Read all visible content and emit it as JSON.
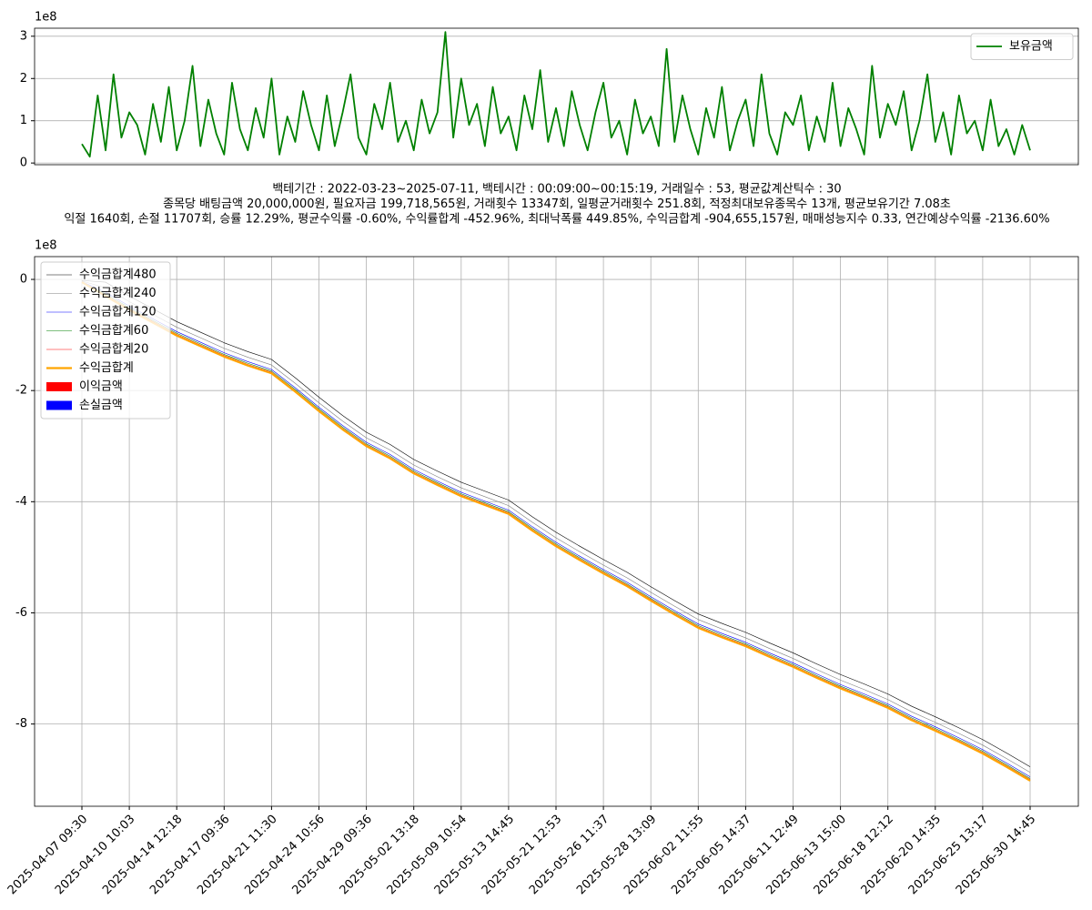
{
  "chart_data": [
    {
      "type": "line",
      "y_offset_label": "1e8",
      "ylim": [
        -0.04,
        3.19
      ],
      "yticks": [
        0,
        1,
        2,
        3
      ],
      "grid": "y",
      "legend": "upper right",
      "series": [
        {
          "name": "보유금액",
          "color": "#008000",
          "values": [
            0.45,
            0.15,
            1.6,
            0.3,
            2.1,
            0.6,
            1.2,
            0.9,
            0.2,
            1.4,
            0.5,
            1.8,
            0.3,
            1.0,
            2.3,
            0.4,
            1.5,
            0.7,
            0.2,
            1.9,
            0.8,
            0.3,
            1.3,
            0.6,
            2.0,
            0.2,
            1.1,
            0.5,
            1.7,
            0.9,
            0.3,
            1.6,
            0.4,
            1.2,
            2.1,
            0.6,
            0.2,
            1.4,
            0.8,
            1.9,
            0.5,
            1.0,
            0.3,
            1.5,
            0.7,
            1.2,
            3.1,
            0.6,
            2.0,
            0.9,
            1.4,
            0.4,
            1.8,
            0.7,
            1.1,
            0.3,
            1.6,
            0.8,
            2.2,
            0.5,
            1.3,
            0.4,
            1.7,
            0.9,
            0.3,
            1.2,
            1.9,
            0.6,
            1.0,
            0.2,
            1.5,
            0.7,
            1.1,
            0.4,
            2.7,
            0.5,
            1.6,
            0.8,
            0.2,
            1.3,
            0.6,
            1.8,
            0.3,
            1.0,
            1.5,
            0.4,
            2.1,
            0.7,
            0.2,
            1.2,
            0.9,
            1.6,
            0.3,
            1.1,
            0.5,
            1.9,
            0.4,
            1.3,
            0.8,
            0.2,
            2.3,
            0.6,
            1.4,
            0.9,
            1.7,
            0.3,
            1.0,
            2.1,
            0.5,
            1.2,
            0.2,
            1.6,
            0.7,
            1.0,
            0.3,
            1.5,
            0.4,
            0.8,
            0.2,
            0.9,
            0.3
          ]
        }
      ]
    },
    {
      "type": "line",
      "title": [
        "백테기간 : 2022-03-23~2025-07-11, 백테시간 : 00:09:00~00:15:19, 거래일수 : 53, 평균값계산틱수 : 30",
        "종목당 배팅금액 20,000,000원, 필요자금 199,718,565원, 거래횟수 13347회, 일평균거래횟수 251.8회, 적정최대보유종목수 13개, 평균보유기간 7.08초",
        "익절 1640회, 손절 11707회, 승률 12.29%, 평균수익률 -0.60%, 수익률합계 -452.96%, 최대낙폭률 449.85%, 수익금합계 -904,655,157원, 매매성능지수 0.33, 연간예상수익률 -2136.60%"
      ],
      "y_offset_label": "1e8",
      "ylim": [
        -9.48,
        0.41
      ],
      "yticks": [
        0,
        -2,
        -4,
        -6,
        -8
      ],
      "grid": "both",
      "legend": "upper left",
      "categories": [
        "2025-04-07 09:30",
        null,
        "2025-04-10 10:03",
        null,
        "2025-04-14 12:18",
        null,
        "2025-04-17 09:36",
        null,
        "2025-04-21 11:30",
        null,
        "2025-04-24 10:56",
        null,
        "2025-04-29 09:36",
        null,
        "2025-05-02 13:18",
        null,
        "2025-05-09 10:54",
        null,
        "2025-05-13 14:45",
        null,
        "2025-05-21 12:53",
        null,
        "2025-05-26 11:37",
        null,
        "2025-05-28 13:09",
        null,
        "2025-06-02 11:55",
        null,
        "2025-06-05 14:37",
        null,
        "2025-06-11 12:49",
        null,
        "2025-06-13 15:00",
        null,
        "2025-06-18 12:12",
        null,
        "2025-06-20 14:35",
        null,
        "2025-06-25 13:17",
        null,
        "2025-06-30 14:45"
      ],
      "series": [
        {
          "name": "수익금합계480",
          "color": "#000000",
          "values": [
            -0.02,
            -0.05,
            -0.3,
            -0.53,
            -0.76,
            -0.95,
            -1.14,
            -1.3,
            -1.44,
            -1.77,
            -2.12,
            -2.45,
            -2.75,
            -2.97,
            -3.24,
            -3.45,
            -3.65,
            -3.81,
            -3.97,
            -4.27,
            -4.55,
            -4.8,
            -5.04,
            -5.27,
            -5.53,
            -5.78,
            -6.02,
            -6.19,
            -6.35,
            -6.54,
            -6.72,
            -6.92,
            -7.11,
            -7.28,
            -7.46,
            -7.68,
            -7.87,
            -8.07,
            -8.28,
            -8.52,
            -8.77
          ]
        },
        {
          "name": "수익금합계240",
          "color": "#808080",
          "values": [
            -0.03,
            -0.15,
            -0.4,
            -0.63,
            -0.86,
            -1.05,
            -1.24,
            -1.4,
            -1.54,
            -1.87,
            -2.22,
            -2.55,
            -2.85,
            -3.07,
            -3.34,
            -3.55,
            -3.75,
            -3.91,
            -4.07,
            -4.37,
            -4.65,
            -4.9,
            -5.14,
            -5.37,
            -5.63,
            -5.88,
            -6.12,
            -6.29,
            -6.45,
            -6.64,
            -6.82,
            -7.02,
            -7.21,
            -7.38,
            -7.56,
            -7.78,
            -7.97,
            -8.17,
            -8.38,
            -8.62,
            -8.87
          ]
        },
        {
          "name": "수익금합계120",
          "color": "#0000ff",
          "values": [
            -0.04,
            -0.23,
            -0.48,
            -0.71,
            -0.94,
            -1.13,
            -1.32,
            -1.48,
            -1.62,
            -1.95,
            -2.3,
            -2.63,
            -2.93,
            -3.15,
            -3.42,
            -3.63,
            -3.83,
            -3.99,
            -4.15,
            -4.45,
            -4.73,
            -4.98,
            -5.22,
            -5.45,
            -5.71,
            -5.96,
            -6.2,
            -6.37,
            -6.53,
            -6.72,
            -6.9,
            -7.1,
            -7.29,
            -7.46,
            -7.64,
            -7.86,
            -8.05,
            -8.25,
            -8.46,
            -8.7,
            -8.95
          ]
        },
        {
          "name": "수익금합계60",
          "color": "#008000",
          "values": [
            -0.05,
            -0.26,
            -0.51,
            -0.74,
            -0.97,
            -1.16,
            -1.35,
            -1.51,
            -1.65,
            -1.98,
            -2.33,
            -2.66,
            -2.96,
            -3.18,
            -3.45,
            -3.66,
            -3.86,
            -4.02,
            -4.18,
            -4.48,
            -4.76,
            -5.01,
            -5.25,
            -5.48,
            -5.74,
            -5.99,
            -6.23,
            -6.4,
            -6.56,
            -6.75,
            -6.93,
            -7.13,
            -7.32,
            -7.49,
            -7.67,
            -7.89,
            -8.08,
            -8.28,
            -8.49,
            -8.73,
            -8.98
          ]
        },
        {
          "name": "수익금합계20",
          "color": "#ff0000",
          "values": [
            -0.05,
            -0.28,
            -0.53,
            -0.76,
            -0.99,
            -1.18,
            -1.37,
            -1.53,
            -1.67,
            -2.0,
            -2.35,
            -2.68,
            -2.98,
            -3.2,
            -3.47,
            -3.68,
            -3.88,
            -4.04,
            -4.2,
            -4.5,
            -4.78,
            -5.03,
            -5.27,
            -5.5,
            -5.76,
            -6.01,
            -6.25,
            -6.42,
            -6.58,
            -6.77,
            -6.95,
            -7.15,
            -7.34,
            -7.51,
            -7.69,
            -7.91,
            -8.1,
            -8.3,
            -8.51,
            -8.75,
            -9.0
          ]
        },
        {
          "name": "수익금합계",
          "color": "#ffa500",
          "values": [
            -0.05,
            -0.3,
            -0.55,
            -0.78,
            -1.01,
            -1.2,
            -1.39,
            -1.55,
            -1.69,
            -2.02,
            -2.37,
            -2.7,
            -3.0,
            -3.22,
            -3.49,
            -3.7,
            -3.9,
            -4.06,
            -4.22,
            -4.52,
            -4.8,
            -5.05,
            -5.29,
            -5.52,
            -5.78,
            -6.03,
            -6.27,
            -6.44,
            -6.6,
            -6.79,
            -6.97,
            -7.17,
            -7.36,
            -7.53,
            -7.71,
            -7.93,
            -8.12,
            -8.32,
            -8.53,
            -8.77,
            -9.02
          ]
        },
        {
          "name": "이익금액",
          "color": "#ff0000",
          "type": "bar",
          "values": [
            0,
            0,
            0,
            0,
            0,
            0,
            0,
            0,
            0,
            0,
            0,
            0,
            0,
            0,
            0,
            0,
            0,
            0,
            0,
            0,
            0,
            0,
            0,
            0,
            0,
            0,
            0,
            0,
            0,
            0,
            0,
            0,
            0,
            0,
            0,
            0,
            0,
            0,
            0,
            0,
            0
          ]
        },
        {
          "name": "손실금액",
          "color": "#0000ff",
          "type": "bar",
          "values": [
            0,
            0,
            0,
            0,
            0,
            0,
            0,
            0,
            0,
            0,
            0,
            0,
            0,
            0,
            0,
            0,
            0,
            0,
            0,
            0,
            0,
            0,
            0,
            0,
            0,
            0,
            0,
            0,
            0,
            0,
            0,
            0,
            0,
            0,
            0,
            0,
            0,
            0,
            0,
            0,
            0
          ]
        }
      ]
    }
  ]
}
